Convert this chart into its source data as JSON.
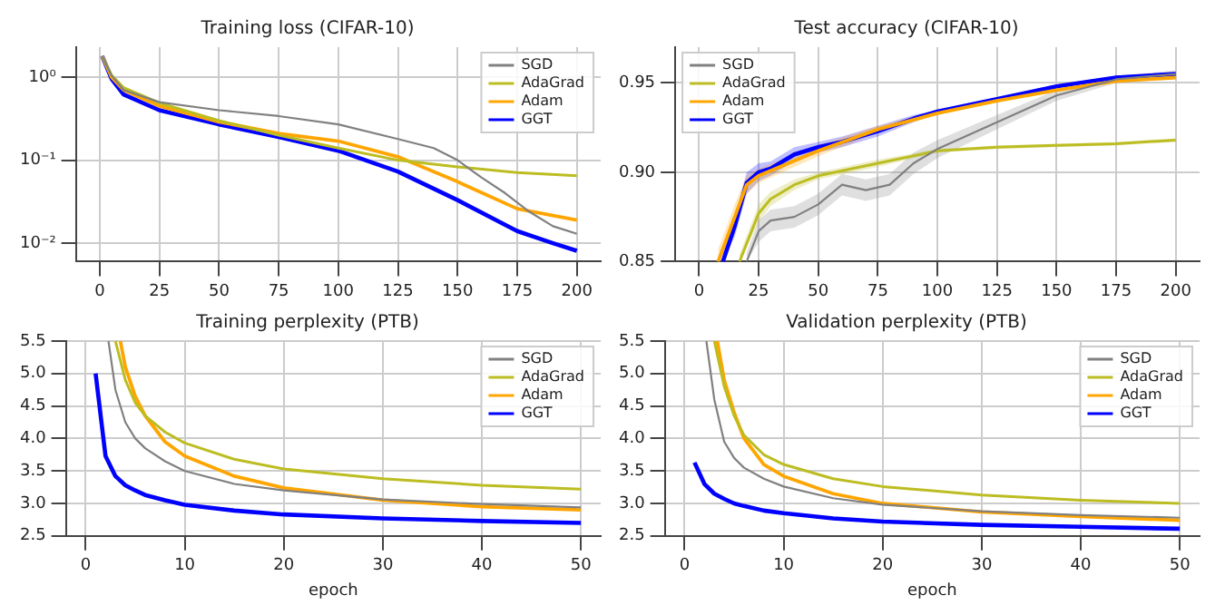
{
  "chart_data": [
    {
      "type": "line",
      "title": "Training loss (CIFAR-10)",
      "log": "y",
      "grid": true,
      "legend": "top right",
      "xlim": [
        -10,
        210
      ],
      "xticks": [
        0,
        25,
        50,
        75,
        100,
        125,
        150,
        175,
        200
      ],
      "ylim": [
        0.006,
        2.3
      ],
      "yticks": [
        {
          "value": 1,
          "label": "10⁰"
        },
        {
          "value": 0.1,
          "label": "10⁻¹"
        },
        {
          "value": 0.01,
          "label": "10⁻²"
        }
      ],
      "series": [
        {
          "name": "SGD",
          "color": "#808080",
          "x": [
            1,
            5,
            10,
            25,
            50,
            75,
            100,
            125,
            140,
            150,
            160,
            170,
            180,
            190,
            200
          ],
          "values": [
            1.8,
            1.05,
            0.7,
            0.5,
            0.4,
            0.34,
            0.27,
            0.18,
            0.14,
            0.1,
            0.062,
            0.04,
            0.024,
            0.016,
            0.013
          ]
        },
        {
          "name": "AdaGrad",
          "color": "#bcbd22",
          "x": [
            1,
            5,
            10,
            25,
            50,
            75,
            100,
            125,
            150,
            175,
            200
          ],
          "values": [
            1.8,
            1.05,
            0.75,
            0.49,
            0.3,
            0.2,
            0.14,
            0.1,
            0.083,
            0.071,
            0.065
          ]
        },
        {
          "name": "Adam",
          "color": "#ffa500",
          "x": [
            1,
            5,
            10,
            25,
            50,
            75,
            100,
            125,
            150,
            175,
            200
          ],
          "values": [
            1.8,
            1.0,
            0.7,
            0.45,
            0.29,
            0.21,
            0.17,
            0.11,
            0.055,
            0.026,
            0.019
          ]
        },
        {
          "name": "GGT",
          "color": "#0000ff",
          "x": [
            1,
            5,
            10,
            25,
            50,
            75,
            100,
            125,
            150,
            175,
            190,
            200
          ],
          "values": [
            1.8,
            0.95,
            0.62,
            0.4,
            0.27,
            0.19,
            0.13,
            0.073,
            0.033,
            0.014,
            0.01,
            0.0081
          ]
        }
      ]
    },
    {
      "type": "line",
      "title": "Test accuracy (CIFAR-10)",
      "grid": true,
      "legend": "top left",
      "xlim": [
        -10,
        210
      ],
      "xticks": [
        0,
        25,
        50,
        75,
        100,
        125,
        150,
        175,
        200
      ],
      "ylim": [
        0.85,
        0.97
      ],
      "yticks": [
        {
          "value": 0.85,
          "label": "0.85"
        },
        {
          "value": 0.9,
          "label": "0.90"
        },
        {
          "value": 0.95,
          "label": "0.95"
        }
      ],
      "series": [
        {
          "name": "SGD",
          "color": "#808080",
          "x": [
            20,
            25,
            30,
            40,
            50,
            60,
            70,
            80,
            90,
            100,
            125,
            150,
            175,
            200
          ],
          "values": [
            0.85,
            0.867,
            0.873,
            0.875,
            0.882,
            0.893,
            0.89,
            0.893,
            0.905,
            0.913,
            0.928,
            0.943,
            0.952,
            0.955
          ],
          "lower": [
            0.85,
            0.861,
            0.867,
            0.869,
            0.876,
            0.887,
            0.884,
            0.887,
            0.899,
            0.908,
            0.924,
            0.94,
            0.95,
            0.953
          ],
          "upper": [
            0.855,
            0.873,
            0.879,
            0.881,
            0.888,
            0.899,
            0.896,
            0.899,
            0.911,
            0.918,
            0.932,
            0.946,
            0.954,
            0.957
          ]
        },
        {
          "name": "AdaGrad",
          "color": "#bcbd22",
          "x": [
            17,
            25,
            30,
            40,
            50,
            75,
            100,
            125,
            150,
            175,
            200
          ],
          "values": [
            0.85,
            0.877,
            0.885,
            0.893,
            0.898,
            0.905,
            0.912,
            0.914,
            0.915,
            0.916,
            0.918
          ],
          "lower": [
            0.85,
            0.872,
            0.881,
            0.89,
            0.896,
            0.903,
            0.911,
            0.913,
            0.914,
            0.915,
            0.917
          ],
          "upper": [
            0.854,
            0.882,
            0.889,
            0.896,
            0.9,
            0.907,
            0.913,
            0.915,
            0.916,
            0.917,
            0.919
          ]
        },
        {
          "name": "Adam",
          "color": "#ffa500",
          "x": [
            8,
            15,
            20,
            25,
            50,
            75,
            100,
            125,
            150,
            175,
            200
          ],
          "values": [
            0.85,
            0.875,
            0.893,
            0.898,
            0.912,
            0.924,
            0.933,
            0.94,
            0.946,
            0.951,
            0.953
          ],
          "lower": [
            0.85,
            0.868,
            0.888,
            0.894,
            0.909,
            0.922,
            0.932,
            0.939,
            0.945,
            0.95,
            0.952
          ],
          "upper": [
            0.857,
            0.882,
            0.898,
            0.902,
            0.915,
            0.926,
            0.934,
            0.941,
            0.947,
            0.952,
            0.954
          ]
        },
        {
          "name": "GGT",
          "color": "#0000ff",
          "x": [
            10,
            15,
            20,
            25,
            30,
            40,
            50,
            60,
            75,
            90,
            100,
            125,
            150,
            175,
            200
          ],
          "values": [
            0.85,
            0.87,
            0.894,
            0.9,
            0.902,
            0.91,
            0.914,
            0.917,
            0.923,
            0.93,
            0.934,
            0.941,
            0.948,
            0.953,
            0.955
          ],
          "lower": [
            0.85,
            0.864,
            0.888,
            0.895,
            0.898,
            0.906,
            0.911,
            0.914,
            0.92,
            0.928,
            0.933,
            0.94,
            0.947,
            0.952,
            0.954
          ],
          "upper": [
            0.856,
            0.876,
            0.9,
            0.905,
            0.906,
            0.914,
            0.917,
            0.92,
            0.926,
            0.932,
            0.935,
            0.942,
            0.949,
            0.954,
            0.956
          ]
        }
      ]
    },
    {
      "type": "line",
      "title": "Training perplexity (PTB)",
      "xlabel": "epoch",
      "grid": true,
      "legend": "top right",
      "xlim": [
        -2,
        52
      ],
      "xticks": [
        0,
        10,
        20,
        30,
        40,
        50
      ],
      "ylim": [
        2.5,
        5.5
      ],
      "yticks": [
        2.5,
        {
          "value": 3,
          "label": "3.0"
        },
        3.5,
        {
          "value": 4,
          "label": "4.0"
        },
        4.5,
        {
          "value": 5,
          "label": "5.0"
        },
        5.5
      ],
      "series": [
        {
          "name": "SGD",
          "color": "#808080",
          "x": [
            2.3,
            3,
            4,
            5,
            6,
            8,
            10,
            15,
            20,
            30,
            40,
            50
          ],
          "values": [
            5.5,
            4.75,
            4.25,
            4.0,
            3.85,
            3.65,
            3.5,
            3.3,
            3.2,
            3.06,
            2.99,
            2.94
          ]
        },
        {
          "name": "AdaGrad",
          "color": "#bcbd22",
          "x": [
            3,
            4,
            5,
            6,
            8,
            10,
            15,
            20,
            30,
            40,
            50
          ],
          "values": [
            5.5,
            4.9,
            4.55,
            4.35,
            4.1,
            3.93,
            3.68,
            3.53,
            3.38,
            3.28,
            3.22
          ]
        },
        {
          "name": "Adam",
          "color": "#ffa500",
          "x": [
            3.5,
            4,
            5,
            6,
            8,
            10,
            15,
            20,
            30,
            40,
            50
          ],
          "values": [
            5.5,
            5.1,
            4.65,
            4.35,
            3.95,
            3.73,
            3.42,
            3.24,
            3.05,
            2.95,
            2.9
          ]
        },
        {
          "name": "GGT",
          "color": "#0000ff",
          "x": [
            1,
            2,
            3,
            4,
            5,
            6,
            8,
            10,
            15,
            20,
            30,
            40,
            50
          ],
          "values": [
            5.0,
            3.73,
            3.42,
            3.28,
            3.2,
            3.13,
            3.05,
            2.98,
            2.89,
            2.83,
            2.77,
            2.73,
            2.7
          ]
        }
      ]
    },
    {
      "type": "line",
      "title": "Validation perplexity (PTB)",
      "xlabel": "epoch",
      "grid": true,
      "legend": "top right",
      "xlim": [
        -2,
        52
      ],
      "xticks": [
        0,
        10,
        20,
        30,
        40,
        50
      ],
      "ylim": [
        2.5,
        5.5
      ],
      "yticks": [
        2.5,
        {
          "value": 3,
          "label": "3.0"
        },
        3.5,
        {
          "value": 4,
          "label": "4.0"
        },
        4.5,
        {
          "value": 5,
          "label": "5.0"
        },
        5.5
      ],
      "series": [
        {
          "name": "SGD",
          "color": "#808080",
          "x": [
            2.2,
            3,
            4,
            5,
            6,
            8,
            10,
            15,
            20,
            30,
            40,
            50
          ],
          "values": [
            5.5,
            4.6,
            3.95,
            3.7,
            3.55,
            3.38,
            3.26,
            3.08,
            2.98,
            2.88,
            2.82,
            2.78
          ]
        },
        {
          "name": "AdaGrad",
          "color": "#bcbd22",
          "x": [
            3,
            4,
            5,
            6,
            8,
            10,
            15,
            20,
            30,
            40,
            50
          ],
          "values": [
            5.5,
            4.8,
            4.35,
            4.05,
            3.75,
            3.6,
            3.38,
            3.26,
            3.13,
            3.05,
            3.0
          ]
        },
        {
          "name": "Adam",
          "color": "#ffa500",
          "x": [
            3.3,
            4,
            5,
            6,
            8,
            10,
            15,
            20,
            30,
            40,
            50
          ],
          "values": [
            5.5,
            4.9,
            4.4,
            4.0,
            3.6,
            3.42,
            3.15,
            3.0,
            2.87,
            2.8,
            2.74
          ]
        },
        {
          "name": "GGT",
          "color": "#0000ff",
          "x": [
            1,
            2,
            3,
            4,
            5,
            6,
            8,
            10,
            15,
            20,
            30,
            40,
            50
          ],
          "values": [
            3.63,
            3.3,
            3.15,
            3.07,
            3.0,
            2.96,
            2.89,
            2.85,
            2.77,
            2.72,
            2.67,
            2.64,
            2.61
          ]
        }
      ]
    }
  ]
}
